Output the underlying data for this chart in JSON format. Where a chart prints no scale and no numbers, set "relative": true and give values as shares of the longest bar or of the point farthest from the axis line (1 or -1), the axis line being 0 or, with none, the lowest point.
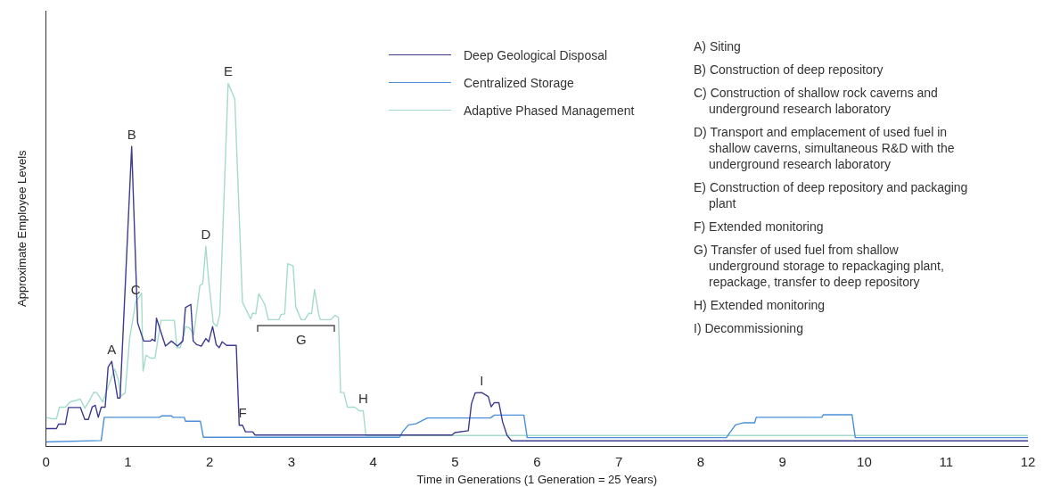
{
  "chart_data": {
    "type": "line",
    "relative": true,
    "xlabel": "Time in Generations (1 Generation = 25 Years)",
    "ylabel": "Approximate Employee Levels",
    "xlim": [
      0,
      12
    ],
    "xticks": [
      0,
      1,
      2,
      3,
      4,
      5,
      6,
      7,
      8,
      9,
      10,
      11,
      12
    ],
    "grid": false,
    "legend": "top right",
    "series": [
      {
        "name": "Deep Geological Disposal",
        "color": "#3d3b8e",
        "x": [
          0,
          0.128,
          0.153,
          0.237,
          0.274,
          0.42,
          0.474,
          0.518,
          0.566,
          0.602,
          0.639,
          0.675,
          0.723,
          0.759,
          0.803,
          0.876,
          0.905,
          1.047,
          1.12,
          1.193,
          1.277,
          1.296,
          1.332,
          1.35,
          1.46,
          1.533,
          1.606,
          1.672,
          1.704,
          1.77,
          1.799,
          1.843,
          1.898,
          1.953,
          1.989,
          2.036,
          2.08,
          2.117,
          2.153,
          2.208,
          2.325,
          2.361,
          2.401,
          2.438,
          2.526,
          2.555,
          4.96,
          4.996,
          5.16,
          5.2,
          5.245,
          5.325,
          5.405,
          5.44,
          5.477,
          5.535,
          5.58,
          5.635,
          5.69,
          12
        ],
        "values": [
          0.049,
          0.049,
          0.061,
          0.061,
          0.107,
          0.107,
          0.074,
          0.074,
          0.109,
          0.113,
          0.08,
          0.108,
          0.108,
          0.218,
          0.234,
          0.133,
          0.133,
          0.826,
          0.34,
          0.29,
          0.29,
          0.295,
          0.29,
          0.353,
          0.276,
          0.29,
          0.276,
          0.29,
          0.382,
          0.391,
          0.29,
          0.28,
          0.276,
          0.297,
          0.288,
          0.33,
          0.28,
          0.272,
          0.288,
          0.278,
          0.278,
          0.058,
          0.058,
          0.04,
          0.04,
          0.031,
          0.031,
          0.038,
          0.043,
          0.118,
          0.147,
          0.148,
          0.137,
          0.109,
          0.12,
          0.12,
          0.067,
          0.03,
          0.015,
          0.015
        ]
      },
      {
        "name": "Centralized Storage",
        "color": "#4a90d9",
        "x": [
          0,
          0.675,
          0.712,
          1.387,
          1.416,
          1.533,
          1.551,
          1.69,
          1.704,
          1.887,
          1.923,
          4.32,
          4.357,
          4.43,
          4.52,
          4.66,
          5.43,
          5.48,
          5.84,
          5.88,
          8.315,
          8.425,
          8.53,
          8.66,
          8.68,
          9.48,
          9.5,
          9.85,
          9.89,
          12
        ],
        "values": [
          0.012,
          0.016,
          0.08,
          0.08,
          0.084,
          0.084,
          0.08,
          0.08,
          0.069,
          0.069,
          0.025,
          0.025,
          0.04,
          0.059,
          0.062,
          0.078,
          0.078,
          0.086,
          0.086,
          0.024,
          0.024,
          0.059,
          0.065,
          0.065,
          0.08,
          0.08,
          0.087,
          0.087,
          0.024,
          0.024
        ]
      },
      {
        "name": "Adaptive Phased Management",
        "color": "#a3dccd",
        "x": [
          0,
          0.073,
          0.128,
          0.164,
          0.237,
          0.292,
          0.42,
          0.474,
          0.53,
          0.584,
          0.62,
          0.693,
          0.766,
          0.839,
          0.883,
          0.912,
          0.967,
          1.022,
          1.095,
          1.168,
          1.186,
          1.223,
          1.277,
          1.332,
          1.405,
          1.569,
          1.599,
          1.642,
          1.708,
          1.752,
          1.807,
          1.88,
          1.916,
          1.953,
          1.989,
          2.044,
          2.088,
          2.124,
          2.226,
          2.307,
          2.401,
          2.5,
          2.526,
          2.564,
          2.6,
          2.673,
          2.717,
          2.844,
          2.874,
          2.917,
          2.954,
          3.02,
          3.053,
          3.118,
          3.165,
          3.209,
          3.246,
          3.282,
          3.337,
          3.355,
          3.482,
          3.53,
          3.574,
          3.6,
          3.64,
          3.683,
          3.774,
          3.829,
          3.877,
          3.909,
          12
        ],
        "values": [
          0.08,
          0.076,
          0.076,
          0.108,
          0.108,
          0.122,
          0.13,
          0.105,
          0.126,
          0.149,
          0.148,
          0.122,
          0.168,
          0.213,
          0.184,
          0.138,
          0.147,
          0.297,
          0.397,
          0.422,
          0.207,
          0.251,
          0.243,
          0.243,
          0.347,
          0.347,
          0.272,
          0.272,
          0.33,
          0.326,
          0.308,
          0.443,
          0.448,
          0.551,
          0.455,
          0.34,
          0.33,
          0.363,
          1.0,
          0.957,
          0.397,
          0.351,
          0.367,
          0.365,
          0.42,
          0.391,
          0.349,
          0.349,
          0.363,
          0.365,
          0.503,
          0.497,
          0.384,
          0.349,
          0.349,
          0.366,
          0.366,
          0.432,
          0.359,
          0.349,
          0.349,
          0.361,
          0.355,
          0.148,
          0.148,
          0.108,
          0.108,
          0.098,
          0.098,
          0.03,
          0.03
        ]
      }
    ],
    "annotations": [
      {
        "text": "A",
        "x": 0.803,
        "y": 0.234
      },
      {
        "text": "B",
        "x": 1.047,
        "y": 0.826
      },
      {
        "text": "C",
        "x": 1.095,
        "y": 0.397
      },
      {
        "text": "D",
        "x": 1.953,
        "y": 0.551
      },
      {
        "text": "E",
        "x": 2.226,
        "y": 1.0
      },
      {
        "text": "F",
        "x": 2.401,
        "y": 0.058
      },
      {
        "text": "G",
        "x": 3.118,
        "y": 0.349
      },
      {
        "text": "H",
        "x": 3.877,
        "y": 0.098
      },
      {
        "text": "I",
        "x": 5.325,
        "y": 0.148
      },
      "A) Siting",
      "B) Construction of deep repository",
      "C) Construction of shallow rock caverns and underground research laboratory",
      "D) Transport and emplacement of used fuel in shallow caverns, simultaneous R&D with the underground research laboratory",
      "E) Construction of deep repository and packaging plant",
      "F) Extended monitoring",
      "G) Transfer of used fuel from shallow underground storage to repackaging plant, repackage, transfer to deep repository",
      "H) Extended monitoring",
      "I)  Decommissioning"
    ]
  }
}
